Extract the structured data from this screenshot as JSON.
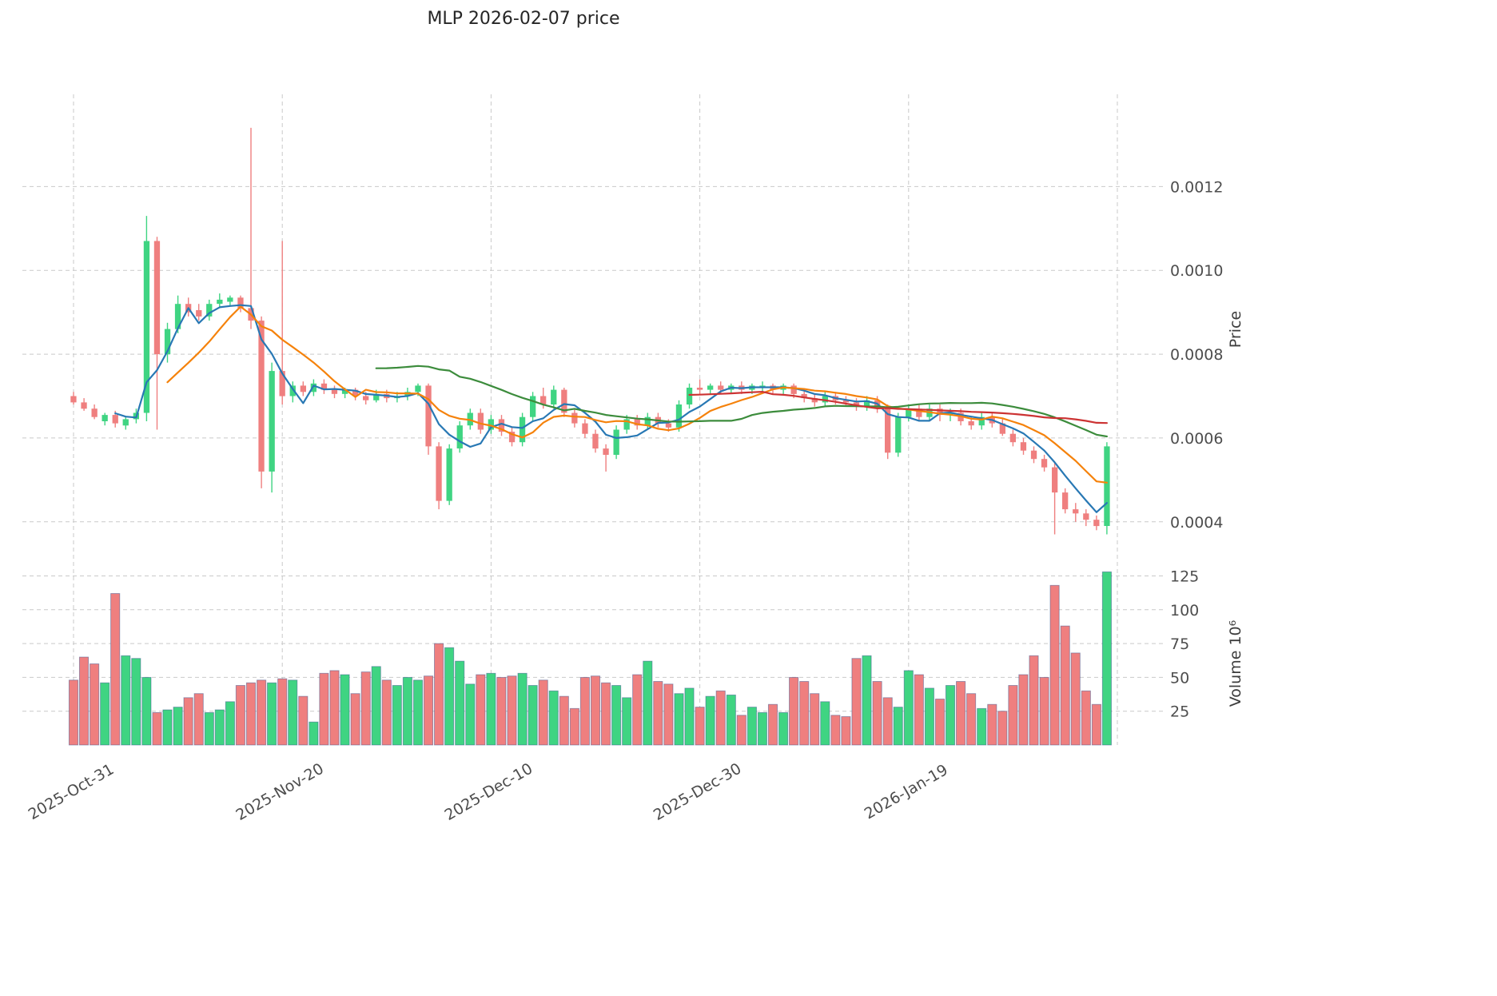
{
  "title": "MLP  2026-02-07  price",
  "axes": {
    "price_label": "Price",
    "volume_label": "Volume  10⁶"
  },
  "style": {
    "up_color": "#3fd482",
    "down_color": "#ef7f7f",
    "grid_color": "#c9c9c9",
    "ma_colors": [
      "#2878b4",
      "#f5820b",
      "#3c8c3c",
      "#cc3333"
    ],
    "volume_edge": "rgba(53,80,140,0.5)",
    "background": "#ffffff"
  },
  "chart_data": {
    "type": "candlestick",
    "has_volume": true,
    "title": "MLP  2026-02-07  price",
    "ylabel": "Price",
    "ylabel_volume": "Volume  10⁶",
    "price_range": [
      0.00031,
      0.00142
    ],
    "volume_range": [
      0,
      130
    ],
    "price_ticks": [
      0.0004,
      0.0006,
      0.0008,
      0.001,
      0.0012
    ],
    "price_tick_labels": [
      "0.0004",
      "0.0006",
      "0.0008",
      "0.0010",
      "0.0012"
    ],
    "volume_ticks": [
      25,
      50,
      75,
      100,
      125
    ],
    "volume_tick_labels": [
      "25",
      "50",
      "75",
      "100",
      "125"
    ],
    "x_ticks": [
      {
        "i": 0,
        "label": "2025-Oct-31"
      },
      {
        "i": 20,
        "label": "2025-Nov-20"
      },
      {
        "i": 40,
        "label": "2025-Dec-10"
      },
      {
        "i": 60,
        "label": "2025-Dec-30"
      },
      {
        "i": 80,
        "label": "2026-Jan-19"
      }
    ],
    "x_grid_indices": [
      0,
      20,
      40,
      60,
      80,
      100
    ],
    "moving_averages": [
      {
        "period": 5,
        "color": "#2878b4"
      },
      {
        "period": 10,
        "color": "#f5820b"
      },
      {
        "period": 30,
        "color": "#3c8c3c"
      },
      {
        "period": 60,
        "color": "#cc3333"
      }
    ],
    "ohlc": [
      [
        0.0007,
        0.00071,
        0.00068,
        0.000685
      ],
      [
        0.000685,
        0.000695,
        0.000665,
        0.00067
      ],
      [
        0.00067,
        0.00068,
        0.000645,
        0.00065
      ],
      [
        0.00064,
        0.00066,
        0.00063,
        0.000655
      ],
      [
        0.000655,
        0.000665,
        0.000625,
        0.000635
      ],
      [
        0.00063,
        0.00065,
        0.00062,
        0.000645
      ],
      [
        0.000645,
        0.00067,
        0.000635,
        0.00066
      ],
      [
        0.00066,
        0.00113,
        0.00064,
        0.00107
      ],
      [
        0.00107,
        0.00108,
        0.00062,
        0.0008
      ],
      [
        0.0008,
        0.000875,
        0.00078,
        0.00086
      ],
      [
        0.00086,
        0.00094,
        0.00085,
        0.00092
      ],
      [
        0.00092,
        0.000935,
        0.00089,
        0.0009
      ],
      [
        0.000905,
        0.00092,
        0.00088,
        0.00089
      ],
      [
        0.00089,
        0.00093,
        0.00088,
        0.00092
      ],
      [
        0.00092,
        0.000945,
        0.00091,
        0.00093
      ],
      [
        0.000925,
        0.00094,
        0.000915,
        0.000935
      ],
      [
        0.000935,
        0.00094,
        0.0009,
        0.00091
      ],
      [
        0.00091,
        0.00134,
        0.00086,
        0.00088
      ],
      [
        0.00088,
        0.00089,
        0.00048,
        0.00052
      ],
      [
        0.00052,
        0.00078,
        0.00047,
        0.00076
      ],
      [
        0.00076,
        0.00107,
        0.00068,
        0.0007
      ],
      [
        0.0007,
        0.000735,
        0.000685,
        0.000725
      ],
      [
        0.000725,
        0.000735,
        0.0007,
        0.00071
      ],
      [
        0.00071,
        0.00074,
        0.0007,
        0.00073
      ],
      [
        0.00073,
        0.00074,
        0.000705,
        0.000715
      ],
      [
        0.000715,
        0.000725,
        0.000695,
        0.000705
      ],
      [
        0.000705,
        0.00072,
        0.000695,
        0.000715
      ],
      [
        0.000715,
        0.00072,
        0.00069,
        0.0007
      ],
      [
        0.0007,
        0.00071,
        0.00068,
        0.00069
      ],
      [
        0.00069,
        0.000715,
        0.000685,
        0.000705
      ],
      [
        0.000705,
        0.000715,
        0.000685,
        0.000695
      ],
      [
        0.000695,
        0.00071,
        0.000685,
        0.0007
      ],
      [
        0.0007,
        0.00072,
        0.00069,
        0.00071
      ],
      [
        0.00071,
        0.00073,
        0.0007,
        0.000725
      ],
      [
        0.000725,
        0.00073,
        0.00056,
        0.00058
      ],
      [
        0.00058,
        0.00059,
        0.00043,
        0.00045
      ],
      [
        0.00045,
        0.000585,
        0.00044,
        0.000575
      ],
      [
        0.000575,
        0.00064,
        0.000565,
        0.00063
      ],
      [
        0.00063,
        0.00067,
        0.00062,
        0.00066
      ],
      [
        0.00066,
        0.00067,
        0.00061,
        0.00062
      ],
      [
        0.00062,
        0.000655,
        0.00061,
        0.000645
      ],
      [
        0.000645,
        0.000655,
        0.000605,
        0.000615
      ],
      [
        0.000615,
        0.000625,
        0.00058,
        0.00059
      ],
      [
        0.00059,
        0.00066,
        0.00058,
        0.00065
      ],
      [
        0.00065,
        0.00071,
        0.00064,
        0.0007
      ],
      [
        0.0007,
        0.00072,
        0.00067,
        0.00068
      ],
      [
        0.00068,
        0.000725,
        0.00067,
        0.000715
      ],
      [
        0.000715,
        0.00072,
        0.00065,
        0.00066
      ],
      [
        0.00066,
        0.00067,
        0.000625,
        0.000635
      ],
      [
        0.000635,
        0.000645,
        0.0006,
        0.00061
      ],
      [
        0.00061,
        0.00062,
        0.000565,
        0.000575
      ],
      [
        0.000575,
        0.000585,
        0.00052,
        0.00056
      ],
      [
        0.00056,
        0.00063,
        0.00055,
        0.00062
      ],
      [
        0.00062,
        0.000655,
        0.00061,
        0.000645
      ],
      [
        0.000645,
        0.000655,
        0.00062,
        0.00063
      ],
      [
        0.00063,
        0.00066,
        0.00062,
        0.00065
      ],
      [
        0.00065,
        0.00066,
        0.000625,
        0.000635
      ],
      [
        0.000635,
        0.000645,
        0.000615,
        0.000625
      ],
      [
        0.000625,
        0.00069,
        0.000615,
        0.00068
      ],
      [
        0.00068,
        0.00073,
        0.00067,
        0.00072
      ],
      [
        0.00072,
        0.00074,
        0.000705,
        0.000715
      ],
      [
        0.000715,
        0.00073,
        0.000705,
        0.000725
      ],
      [
        0.000725,
        0.000735,
        0.000705,
        0.000715
      ],
      [
        0.000715,
        0.00073,
        0.000705,
        0.000725
      ],
      [
        0.000725,
        0.000735,
        0.000705,
        0.000715
      ],
      [
        0.000715,
        0.00073,
        0.000705,
        0.000725
      ],
      [
        0.00072,
        0.000735,
        0.00071,
        0.000725
      ],
      [
        0.000725,
        0.00073,
        0.000705,
        0.000715
      ],
      [
        0.000715,
        0.00073,
        0.000705,
        0.000725
      ],
      [
        0.000725,
        0.00073,
        0.000695,
        0.000705
      ],
      [
        0.000705,
        0.000715,
        0.000685,
        0.000695
      ],
      [
        0.000695,
        0.000705,
        0.000675,
        0.000685
      ],
      [
        0.000685,
        0.00071,
        0.000675,
        0.0007
      ],
      [
        0.0007,
        0.00071,
        0.00068,
        0.00069
      ],
      [
        0.00069,
        0.0007,
        0.000675,
        0.000685
      ],
      [
        0.000685,
        0.000695,
        0.000665,
        0.000675
      ],
      [
        0.000675,
        0.0007,
        0.000665,
        0.00069
      ],
      [
        0.00069,
        0.0007,
        0.00066,
        0.00067
      ],
      [
        0.00067,
        0.00068,
        0.00055,
        0.000565
      ],
      [
        0.000565,
        0.00066,
        0.000555,
        0.00065
      ],
      [
        0.00065,
        0.00068,
        0.00064,
        0.00067
      ],
      [
        0.00067,
        0.00068,
        0.00064,
        0.00065
      ],
      [
        0.00065,
        0.00068,
        0.00064,
        0.00067
      ],
      [
        0.00067,
        0.00068,
        0.00064,
        0.000655
      ],
      [
        0.000655,
        0.00067,
        0.00064,
        0.00066
      ],
      [
        0.00066,
        0.00067,
        0.00063,
        0.00064
      ],
      [
        0.00064,
        0.00065,
        0.00062,
        0.00063
      ],
      [
        0.00063,
        0.00066,
        0.00062,
        0.00065
      ],
      [
        0.00065,
        0.00066,
        0.000625,
        0.000635
      ],
      [
        0.000635,
        0.000645,
        0.000605,
        0.00061
      ],
      [
        0.00061,
        0.00062,
        0.00058,
        0.00059
      ],
      [
        0.00059,
        0.0006,
        0.00056,
        0.00057
      ],
      [
        0.00057,
        0.00058,
        0.00054,
        0.00055
      ],
      [
        0.00055,
        0.00056,
        0.00052,
        0.00053
      ],
      [
        0.00053,
        0.00054,
        0.00037,
        0.00047
      ],
      [
        0.00047,
        0.00048,
        0.00042,
        0.00043
      ],
      [
        0.00043,
        0.000445,
        0.0004,
        0.00042
      ],
      [
        0.00042,
        0.00043,
        0.00039,
        0.000405
      ],
      [
        0.000405,
        0.000415,
        0.00038,
        0.00039
      ],
      [
        0.00039,
        0.00059,
        0.00037,
        0.00058
      ]
    ],
    "volume": [
      48,
      65,
      60,
      46,
      112,
      66,
      64,
      50,
      24,
      26,
      28,
      35,
      38,
      24,
      26,
      32,
      44,
      46,
      48,
      46,
      49,
      48,
      36,
      17,
      53,
      55,
      52,
      38,
      54,
      58,
      48,
      44,
      50,
      48,
      51,
      75,
      72,
      62,
      45,
      52,
      53,
      50,
      51,
      53,
      44,
      48,
      40,
      36,
      27,
      50,
      51,
      46,
      44,
      35,
      52,
      62,
      47,
      45,
      38,
      42,
      28,
      36,
      40,
      37,
      22,
      28,
      24,
      30,
      24,
      50,
      47,
      38,
      32,
      22,
      21,
      64,
      66,
      47,
      35,
      28,
      55,
      52,
      42,
      34,
      44,
      47,
      38,
      27,
      30,
      25,
      44,
      52,
      66,
      50,
      118,
      88,
      68,
      40,
      30,
      128
    ]
  }
}
